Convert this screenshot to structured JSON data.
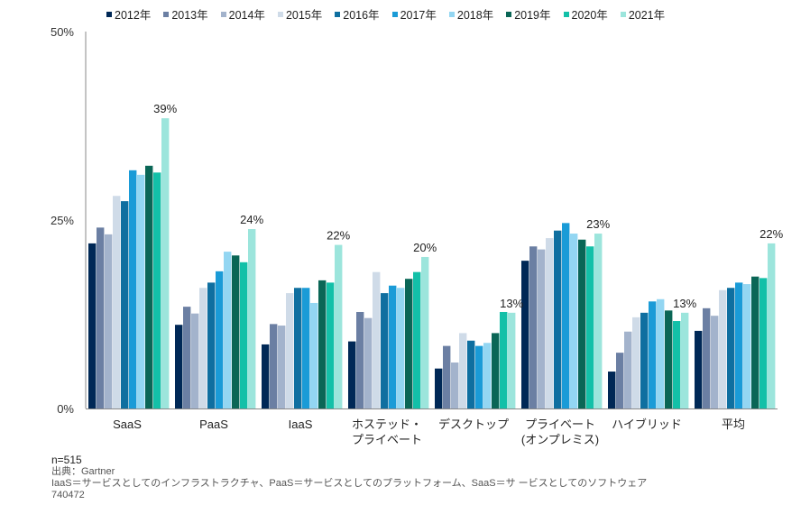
{
  "chart_data": {
    "type": "bar",
    "title": "",
    "xlabel": "",
    "ylabel": "",
    "ylim": [
      0,
      50
    ],
    "yticks": [
      "0%",
      "25%",
      "50%"
    ],
    "ytick_values": [
      0,
      25,
      50
    ],
    "grid": false,
    "legend_position": "top",
    "categories": [
      [
        "SaaS"
      ],
      [
        "PaaS"
      ],
      [
        "IaaS"
      ],
      [
        "ホステッド・",
        "プライベート"
      ],
      [
        "デスクトップ"
      ],
      [
        "プライベート",
        "(オンプレミス)"
      ],
      [
        "ハイブリッド"
      ],
      [
        "平均"
      ]
    ],
    "series": [
      {
        "name": "2012年",
        "color": "#002856",
        "values": [
          21.9,
          11.1,
          8.5,
          8.9,
          5.3,
          19.6,
          4.9,
          10.3
        ]
      },
      {
        "name": "2013年",
        "color": "#6b7fa3",
        "values": [
          24.0,
          13.5,
          11.2,
          12.8,
          8.3,
          21.5,
          7.4,
          13.3
        ]
      },
      {
        "name": "2014年",
        "color": "#a3b3cc",
        "values": [
          23.1,
          12.6,
          11.0,
          12.0,
          6.1,
          21.1,
          10.2,
          12.3
        ]
      },
      {
        "name": "2015年",
        "color": "#cfdbe8",
        "values": [
          28.2,
          16.0,
          15.3,
          18.1,
          10.0,
          22.6,
          12.1,
          15.7
        ]
      },
      {
        "name": "2016年",
        "color": "#0f6fa0",
        "values": [
          27.5,
          16.7,
          16.0,
          15.3,
          9.0,
          23.6,
          12.7,
          16.0
        ]
      },
      {
        "name": "2017年",
        "color": "#1a9bd7",
        "values": [
          31.6,
          18.2,
          16.0,
          16.3,
          8.3,
          24.6,
          14.2,
          16.7
        ]
      },
      {
        "name": "2018年",
        "color": "#93d6f2",
        "values": [
          31.0,
          20.8,
          14.0,
          16.0,
          8.7,
          23.2,
          14.5,
          16.5
        ]
      },
      {
        "name": "2019年",
        "color": "#0a6656",
        "values": [
          32.2,
          20.3,
          17.0,
          17.2,
          10.0,
          22.4,
          13.0,
          17.5
        ]
      },
      {
        "name": "2020年",
        "color": "#13c0a8",
        "values": [
          31.3,
          19.4,
          16.7,
          18.1,
          12.8,
          21.5,
          11.6,
          17.3
        ]
      },
      {
        "name": "2021年",
        "color": "#9ce5dc",
        "values": [
          38.5,
          23.8,
          21.7,
          20.1,
          12.7,
          23.2,
          12.7,
          21.9
        ]
      }
    ],
    "data_labels": [
      "39%",
      "24%",
      "22%",
      "20%",
      "13%",
      "23%",
      "13%",
      "22%"
    ],
    "axis_color": "#8a8a8a"
  },
  "notes": {
    "n": "n=515",
    "source": "出典：Gartner",
    "definitions": "IaaS＝サービスとしてのインフラストラクチャ、PaaS＝サービスとしてのプラットフォーム、SaaS＝サ ービスとしてのソフトウェア",
    "id": "740472"
  }
}
